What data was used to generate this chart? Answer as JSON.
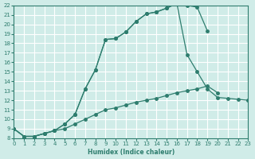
{
  "xlabel": "Humidex (Indice chaleur)",
  "bg_color": "#d0ece8",
  "grid_color": "#ffffff",
  "line_color": "#2e7d6e",
  "xlim": [
    0,
    23
  ],
  "ylim": [
    8,
    22
  ],
  "xticks": [
    0,
    1,
    2,
    3,
    4,
    5,
    6,
    7,
    8,
    9,
    10,
    11,
    12,
    13,
    14,
    15,
    16,
    17,
    18,
    19,
    20,
    21,
    22,
    23
  ],
  "yticks": [
    8,
    9,
    10,
    11,
    12,
    13,
    14,
    15,
    16,
    17,
    18,
    19,
    20,
    21,
    22
  ],
  "curve1_x": [
    0,
    1,
    2,
    3,
    4,
    5,
    6,
    7,
    8,
    9,
    10,
    11,
    12,
    13,
    14,
    15,
    16,
    17,
    18,
    19
  ],
  "curve1_y": [
    9.0,
    8.2,
    8.2,
    8.5,
    8.8,
    9.5,
    10.5,
    13.2,
    15.2,
    18.4,
    18.5,
    19.2,
    20.3,
    21.1,
    21.3,
    21.7,
    22.2,
    22.0,
    21.8,
    19.3
  ],
  "curve2_x": [
    0,
    1,
    2,
    3,
    4,
    5,
    6,
    7,
    8,
    9,
    10,
    11,
    12,
    13,
    14,
    15,
    16,
    17,
    18,
    19,
    20,
    21,
    22,
    23
  ],
  "curve2_y": [
    9.0,
    8.2,
    8.2,
    8.5,
    8.8,
    9.5,
    10.5,
    13.2,
    15.2,
    18.4,
    18.5,
    19.2,
    20.3,
    21.1,
    21.3,
    21.7,
    22.2,
    16.8,
    15.0,
    13.2,
    12.3,
    12.2,
    12.1,
    12.0
  ],
  "curve3_x": [
    0,
    1,
    2,
    3,
    4,
    5,
    6,
    7,
    8,
    9,
    10,
    11,
    12,
    13,
    14,
    15,
    16,
    17,
    18,
    19,
    20
  ],
  "curve3_y": [
    9.0,
    8.2,
    8.2,
    8.5,
    8.8,
    9.0,
    9.5,
    10.0,
    10.5,
    11.0,
    11.2,
    11.5,
    11.8,
    12.0,
    12.2,
    12.5,
    12.8,
    13.0,
    13.2,
    13.5,
    12.8
  ]
}
